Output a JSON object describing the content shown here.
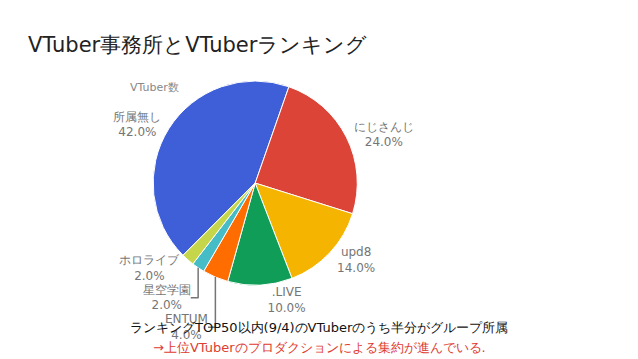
{
  "heading": "VTuber事務所とVTuberランキング",
  "footnotes": [
    "ランキングTOP50以内(9/4)のVTuberのうち半分がグループ所属",
    "→上位VTuberのプロダクションによる集約が進んでいる."
  ],
  "chart_data": {
    "type": "pie",
    "title": "VTuber数",
    "categories": [
      "所属無し",
      "にじさんじ",
      "upd8",
      ".LIVE",
      "ENTUM",
      "星空学園",
      "ホロライブ"
    ],
    "values": [
      42,
      24,
      14,
      10,
      4,
      2,
      2
    ],
    "value_labels": [
      "42.0%",
      "24.0%",
      "14.0%",
      "10.0%",
      "4.0%",
      "2.0%",
      "2.0%"
    ],
    "colors": [
      "#3f5fd8",
      "#db4437",
      "#f4b400",
      "#0f9d58",
      "#ff6d00",
      "#46bdc6",
      "#c6d64a"
    ],
    "data_labels": true
  }
}
